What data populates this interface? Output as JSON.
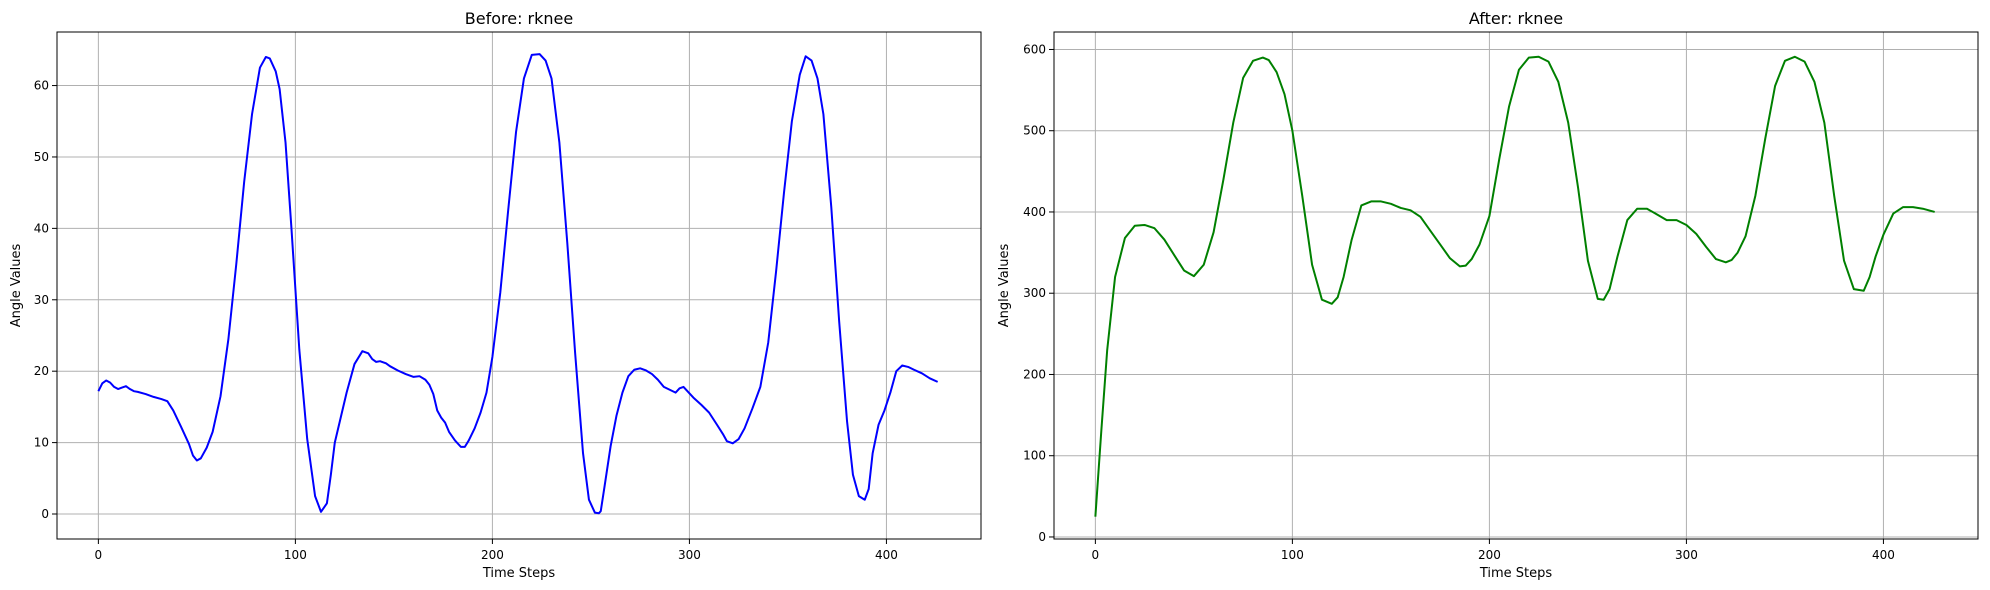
{
  "chart_data": [
    {
      "type": "line",
      "title": "Before: rknee",
      "xlabel": "Time Steps",
      "ylabel": "Angle Values",
      "xlim": [
        -21,
        448
      ],
      "ylim": [
        -3.5,
        67.5
      ],
      "xticks": [
        0,
        100,
        200,
        300,
        400
      ],
      "yticks": [
        0,
        10,
        20,
        30,
        40,
        50,
        60
      ],
      "grid": true,
      "color": "#0000ff",
      "series": [
        {
          "x": [
            0,
            2,
            4,
            6,
            8,
            10,
            12,
            14,
            16,
            18,
            20,
            24,
            28,
            32,
            35,
            38,
            42,
            46,
            48,
            50,
            52,
            55,
            58,
            62,
            66,
            70,
            74,
            78,
            82,
            85,
            87,
            90,
            92,
            95,
            98,
            102,
            106,
            110,
            113,
            116,
            118,
            120,
            123,
            126,
            130,
            134,
            137,
            139,
            141,
            143,
            146,
            148,
            152,
            156,
            160,
            163,
            166,
            168,
            170,
            172,
            174,
            176,
            178,
            181,
            184,
            186,
            188,
            191,
            194,
            197,
            200,
            204,
            208,
            212,
            216,
            220,
            224,
            227,
            230,
            234,
            238,
            242,
            246,
            249,
            252,
            254,
            255,
            257,
            260,
            263,
            266,
            269,
            272,
            275,
            278,
            281,
            284,
            287,
            290,
            293,
            295,
            297,
            299,
            302,
            306,
            310,
            314,
            317,
            319,
            322,
            325,
            328,
            332,
            336,
            340,
            344,
            348,
            352,
            356,
            359,
            362,
            365,
            368,
            372,
            376,
            380,
            383,
            386,
            389,
            391,
            393,
            396,
            399,
            402,
            405,
            408,
            411,
            414,
            418,
            422,
            426
          ],
          "y": [
            17.2,
            18.3,
            18.7,
            18.4,
            17.8,
            17.5,
            17.7,
            17.9,
            17.5,
            17.2,
            17.1,
            16.8,
            16.4,
            16.1,
            15.8,
            14.5,
            12.2,
            9.8,
            8.2,
            7.5,
            7.8,
            9.3,
            11.5,
            16.5,
            24.5,
            35.0,
            46.5,
            56.0,
            62.5,
            64.0,
            63.8,
            62.0,
            59.5,
            52.0,
            40.0,
            23.0,
            10.5,
            2.5,
            0.3,
            1.5,
            5.5,
            10.0,
            13.5,
            17.0,
            21.0,
            22.8,
            22.5,
            21.7,
            21.3,
            21.4,
            21.1,
            20.7,
            20.1,
            19.6,
            19.2,
            19.3,
            18.8,
            18.1,
            16.8,
            14.5,
            13.5,
            12.8,
            11.5,
            10.3,
            9.4,
            9.4,
            10.3,
            12.0,
            14.2,
            17.0,
            22.0,
            31.0,
            42.5,
            53.5,
            61.0,
            64.3,
            64.4,
            63.5,
            61.0,
            52.0,
            38.0,
            22.5,
            8.5,
            2.0,
            0.2,
            0.1,
            0.4,
            4.0,
            9.5,
            13.8,
            17.0,
            19.3,
            20.2,
            20.4,
            20.1,
            19.6,
            18.8,
            17.8,
            17.4,
            17.0,
            17.6,
            17.8,
            17.2,
            16.3,
            15.3,
            14.2,
            12.5,
            11.2,
            10.2,
            9.9,
            10.5,
            12.0,
            14.8,
            17.8,
            24.0,
            34.0,
            45.0,
            55.0,
            61.5,
            64.1,
            63.5,
            61.0,
            56.0,
            43.0,
            27.0,
            13.0,
            5.5,
            2.5,
            2.0,
            3.5,
            8.5,
            12.5,
            14.5,
            17.0,
            20.0,
            20.8,
            20.6,
            20.2,
            19.7,
            19.0,
            18.5
          ]
        }
      ]
    },
    {
      "type": "line",
      "title": "After: rknee",
      "xlabel": "Time Steps",
      "ylabel": "Angle Values",
      "xlim": [
        -21,
        448
      ],
      "ylim": [
        -2.5,
        621.5
      ],
      "xticks": [
        0,
        100,
        200,
        300,
        400
      ],
      "yticks": [
        0,
        100,
        200,
        300,
        400,
        500,
        600
      ],
      "grid": true,
      "color": "#008000",
      "series": [
        {
          "x": [
            0,
            3,
            6,
            10,
            15,
            20,
            25,
            30,
            35,
            40,
            45,
            50,
            55,
            60,
            65,
            70,
            75,
            80,
            85,
            88,
            92,
            96,
            100,
            105,
            110,
            115,
            120,
            123,
            126,
            130,
            135,
            140,
            145,
            150,
            155,
            160,
            165,
            170,
            175,
            180,
            185,
            188,
            191,
            195,
            200,
            205,
            210,
            215,
            220,
            225,
            230,
            235,
            240,
            245,
            250,
            255,
            258,
            261,
            265,
            270,
            275,
            280,
            285,
            290,
            295,
            300,
            305,
            310,
            315,
            320,
            323,
            326,
            330,
            335,
            340,
            345,
            350,
            355,
            360,
            365,
            370,
            375,
            380,
            385,
            390,
            393,
            396,
            400,
            405,
            410,
            415,
            420,
            426
          ],
          "y": [
            25,
            130,
            230,
            320,
            368,
            383,
            384,
            380,
            366,
            347,
            328,
            321,
            335,
            375,
            440,
            510,
            565,
            586,
            590,
            587,
            572,
            545,
            500,
            420,
            335,
            292,
            287,
            295,
            320,
            365,
            408,
            413,
            413,
            410,
            405,
            402,
            394,
            377,
            360,
            343,
            333,
            334,
            342,
            360,
            395,
            465,
            530,
            575,
            590,
            591,
            585,
            560,
            510,
            430,
            340,
            293,
            292,
            305,
            345,
            390,
            404,
            404,
            397,
            390,
            390,
            384,
            373,
            357,
            342,
            338,
            341,
            350,
            370,
            420,
            490,
            555,
            586,
            591,
            585,
            560,
            510,
            420,
            340,
            305,
            303,
            320,
            345,
            372,
            398,
            406,
            406,
            404,
            400
          ]
        }
      ]
    }
  ]
}
